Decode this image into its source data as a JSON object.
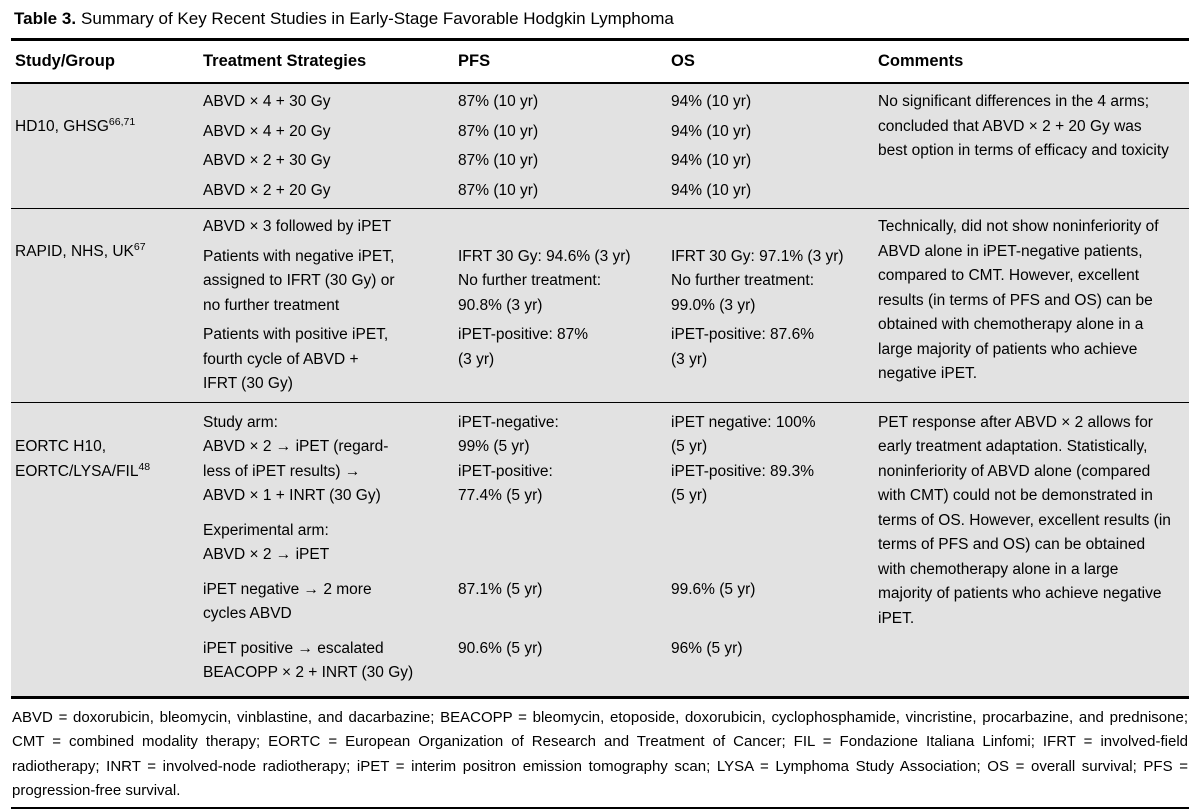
{
  "title": {
    "label": "Table 3.",
    "text": "Summary of Key Recent Studies in Early-Stage Favorable Hodgkin Lymphoma"
  },
  "columns": {
    "study": "Study/Group",
    "treatment": "Treatment Strategies",
    "pfs": "PFS",
    "os": "OS",
    "comments": "Comments"
  },
  "studies": [
    {
      "name": "HD10, GHSG",
      "ref": "66,71",
      "comments": "No significant differences in the 4 arms; concluded that ABVD × 2 + 20 Gy was best option in terms of efficacy and toxicity",
      "subrows": [
        {
          "treatment": "ABVD × 4 + 30 Gy",
          "pfs": "87% (10 yr)",
          "os": "94% (10 yr)"
        },
        {
          "treatment": "ABVD × 4 + 20 Gy",
          "pfs": "87% (10 yr)",
          "os": "94% (10 yr)"
        },
        {
          "treatment": "ABVD × 2 + 30 Gy",
          "pfs": "87% (10 yr)",
          "os": "94% (10 yr)"
        },
        {
          "treatment": "ABVD × 2 + 20 Gy",
          "pfs": "87% (10 yr)",
          "os": "94% (10 yr)"
        }
      ]
    },
    {
      "name": "RAPID, NHS, UK",
      "ref": "67",
      "comments": "Technically, did not show noninferiority of ABVD alone in iPET-negative patients, compared to CMT. However, excellent results (in terms of PFS and OS) can be obtained with chemotherapy alone in a large majority of patients who achieve negative iPET.",
      "subrows": [
        {
          "treatment": "ABVD × 3 followed by iPET",
          "pfs": "",
          "os": ""
        },
        {
          "treatment": "Patients with negative iPET,\nassigned to IFRT (30 Gy) or\nno further treatment",
          "pfs": "IFRT 30 Gy: 94.6% (3 yr)\nNo further treatment:\n90.8% (3 yr)",
          "os": "IFRT 30 Gy: 97.1% (3 yr)\nNo further treatment:\n99.0% (3 yr)"
        },
        {
          "treatment": "Patients with positive iPET,\nfourth cycle of ABVD +\nIFRT (30 Gy)",
          "pfs": "iPET-positive: 87%\n(3 yr)",
          "os": "iPET-positive: 87.6%\n(3 yr)"
        }
      ]
    },
    {
      "name": "EORTC H10,\nEORTC/LYSA/FIL",
      "ref": "48",
      "comments": "PET response after ABVD × 2 allows for early treatment adaptation. Statistically, noninferiority of ABVD alone (compared with CMT) could not be demonstrated in terms of OS. However, excellent results (in terms of PFS and OS) can be obtained with chemotherapy alone in a large majority of patients who achieve negative iPET.",
      "subrows": [
        {
          "treatment": "Study arm:\nABVD × 2 → iPET (regard-\nless of iPET results) →\nABVD × 1 + INRT (30 Gy)",
          "pfs": "iPET-negative:\n99% (5 yr)\niPET-positive:\n77.4% (5 yr)",
          "os": "iPET negative: 100%\n(5 yr)\niPET-positive: 89.3%\n(5 yr)"
        },
        {
          "treatment": "Experimental arm:\nABVD × 2 → iPET",
          "pfs": "",
          "os": ""
        },
        {
          "treatment": "iPET negative → 2 more\ncycles ABVD",
          "pfs": "87.1% (5 yr)",
          "os": "99.6% (5 yr)"
        },
        {
          "treatment": "iPET positive → escalated\nBEACOPP × 2 + INRT (30 Gy)",
          "pfs": "90.6% (5 yr)",
          "os": "96% (5 yr)"
        }
      ]
    }
  ],
  "footnote": "ABVD = doxorubicin, bleomycin, vinblastine, and dacarbazine; BEACOPP = bleomycin, etoposide, doxorubicin, cyclophosphamide, vincristine, procarbazine, and prednisone; CMT = combined modality therapy; EORTC = European Organization of Research and Treatment of Cancer; FIL = Fondazione Italiana Linfomi; IFRT = involved-field radiotherapy; INRT = involved-node radiotherapy; iPET = interim positron emission tomography scan; LYSA = Lymphoma Study Association; OS = overall survival; PFS = progression-free survival."
}
